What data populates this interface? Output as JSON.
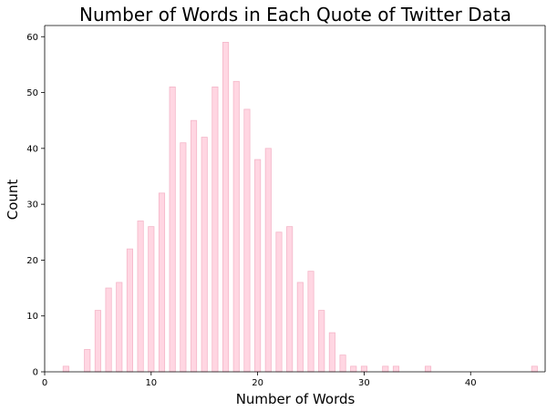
{
  "chart_data": {
    "type": "bar",
    "title": "Number of Words in Each Quote of Twitter Data",
    "xlabel": "Number of Words",
    "ylabel": "Count",
    "xlim": [
      0,
      47
    ],
    "ylim": [
      0,
      62
    ],
    "xticks": [
      0,
      10,
      20,
      30,
      40
    ],
    "yticks": [
      0,
      10,
      20,
      30,
      40,
      50,
      60
    ],
    "grid": false,
    "bar_color": "#ffd6e2",
    "bar_edge_color": "#f4b6c8",
    "x": [
      2,
      4,
      5,
      6,
      7,
      8,
      9,
      10,
      11,
      12,
      13,
      14,
      15,
      16,
      17,
      18,
      19,
      20,
      21,
      22,
      23,
      24,
      25,
      26,
      27,
      28,
      29,
      30,
      32,
      33,
      36,
      46
    ],
    "values": [
      1,
      4,
      11,
      15,
      16,
      22,
      27,
      26,
      32,
      51,
      41,
      45,
      42,
      51,
      59,
      52,
      47,
      38,
      40,
      25,
      26,
      16,
      18,
      11,
      7,
      3,
      1,
      1,
      1,
      1,
      1,
      1
    ]
  }
}
